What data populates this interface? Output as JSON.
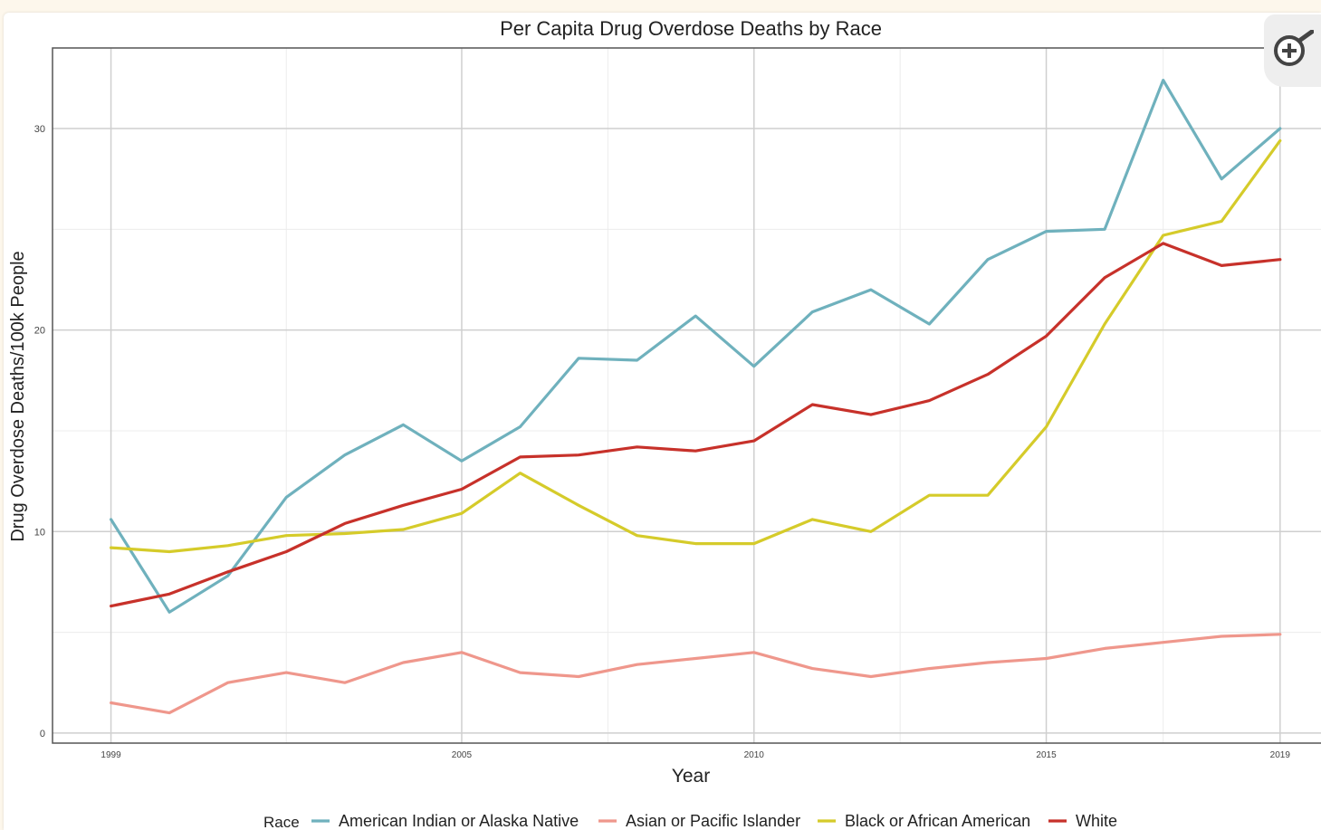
{
  "chart_data": {
    "type": "line",
    "title": "Per Capita Drug Overdose Deaths by Race",
    "xlabel": "Year",
    "ylabel": "Drug Overdose Deaths/100k People",
    "x": [
      1999,
      2000,
      2001,
      2002,
      2003,
      2004,
      2005,
      2006,
      2007,
      2008,
      2009,
      2010,
      2011,
      2012,
      2013,
      2014,
      2015,
      2016,
      2017,
      2018,
      2019
    ],
    "xticks": [
      "1999",
      "2005",
      "2010",
      "2015",
      "2019"
    ],
    "yticks": [
      "0",
      "10",
      "20",
      "30"
    ],
    "xlim": [
      1998.0,
      2019.7
    ],
    "ylim": [
      -0.5,
      34.0
    ],
    "grid": true,
    "legend_position": "bottom",
    "legend_title": "Race",
    "series": [
      {
        "name": "American Indian or Alaska Native",
        "color": "#6fb1bd",
        "values": [
          10.6,
          6.0,
          7.8,
          11.7,
          13.8,
          15.3,
          13.5,
          15.2,
          18.6,
          18.5,
          20.7,
          18.2,
          20.9,
          22.0,
          20.3,
          23.5,
          24.9,
          25.0,
          32.4,
          27.5,
          30.0
        ]
      },
      {
        "name": "Asian or Pacific Islander",
        "color": "#ef978c",
        "values": [
          1.5,
          1.0,
          2.5,
          3.0,
          2.5,
          3.5,
          4.0,
          3.0,
          2.8,
          3.4,
          3.7,
          4.0,
          3.2,
          2.8,
          3.2,
          3.5,
          3.7,
          4.2,
          4.5,
          4.8,
          4.9
        ]
      },
      {
        "name": "Black or African American",
        "color": "#d5cb2a",
        "values": [
          9.2,
          9.0,
          9.3,
          9.8,
          9.9,
          10.1,
          10.9,
          12.9,
          11.3,
          9.8,
          9.4,
          9.4,
          10.6,
          10.0,
          11.8,
          11.8,
          15.2,
          20.3,
          24.7,
          25.4,
          29.4
        ]
      },
      {
        "name": "White",
        "color": "#c7312a",
        "values": [
          6.3,
          6.9,
          8.0,
          9.0,
          10.4,
          11.3,
          12.1,
          13.7,
          13.8,
          14.2,
          14.0,
          14.5,
          16.3,
          15.8,
          16.5,
          17.8,
          19.7,
          22.6,
          24.3,
          23.2,
          23.5
        ]
      }
    ]
  },
  "controls": {
    "zoom_icon": "zoom-in-icon"
  }
}
